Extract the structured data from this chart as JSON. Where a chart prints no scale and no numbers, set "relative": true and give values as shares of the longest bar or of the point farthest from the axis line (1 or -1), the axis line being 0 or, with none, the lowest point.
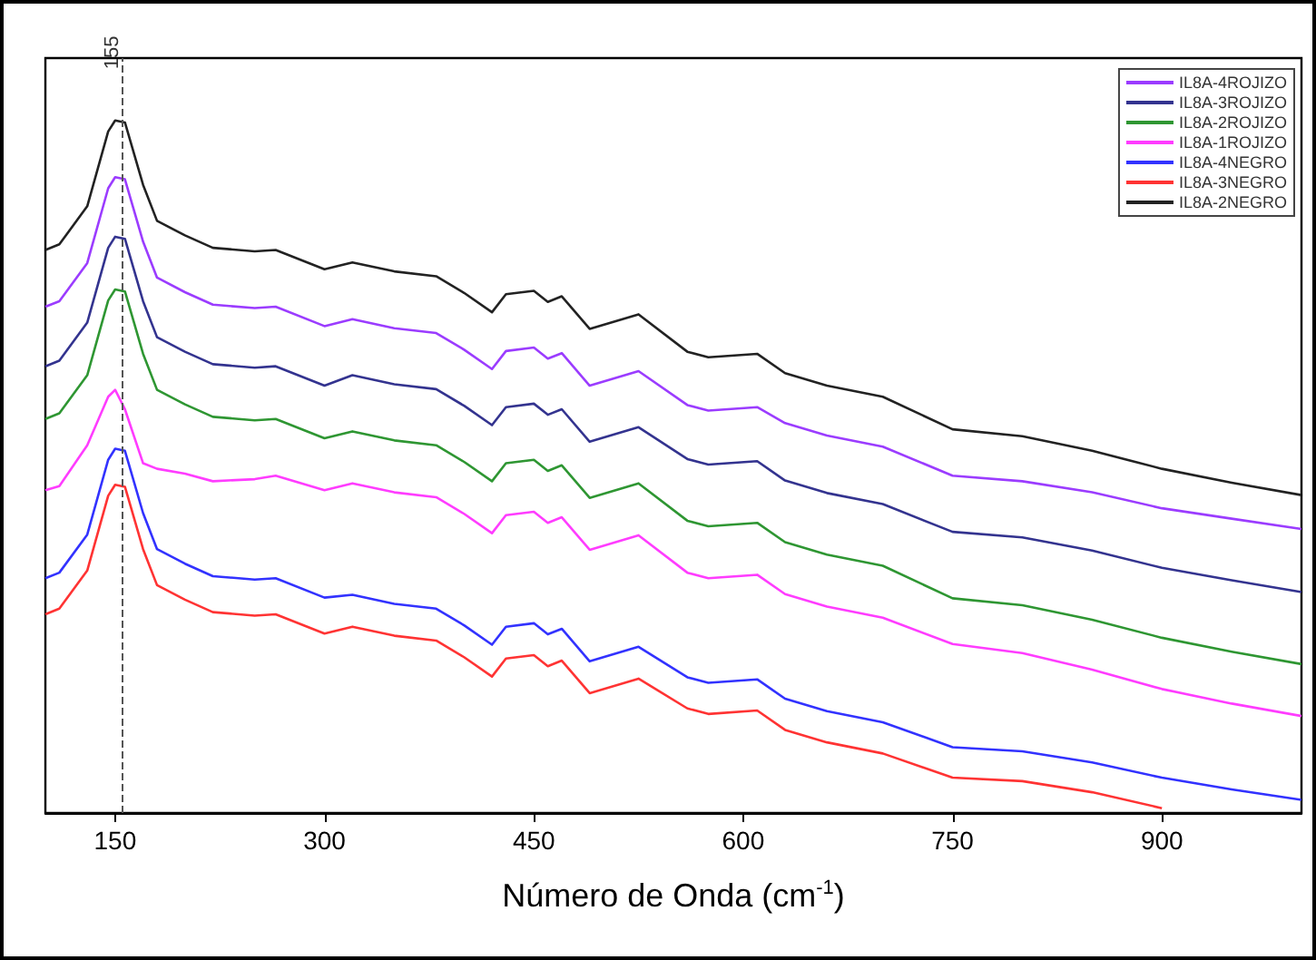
{
  "chart_data": {
    "type": "line",
    "relative": true,
    "xlabel": "Número de Onda (cm$^{-1}$)",
    "x": [
      100,
      110,
      130,
      145,
      150,
      157,
      170,
      180,
      200,
      220,
      250,
      265,
      300,
      320,
      350,
      380,
      400,
      420,
      430,
      450,
      460,
      470,
      490,
      525,
      560,
      575,
      610,
      630,
      660,
      700,
      750,
      800,
      850,
      900,
      950,
      1000
    ],
    "xlim": [
      100,
      1000
    ],
    "xticks": [
      150,
      300,
      450,
      600,
      750,
      900
    ],
    "series": [
      {
        "name": "IL8A-4ROJIZO",
        "color": "#9b3cff",
        "values": [
          0.731,
          0.739,
          0.794,
          0.902,
          0.918,
          0.915,
          0.825,
          0.773,
          0.752,
          0.734,
          0.729,
          0.731,
          0.703,
          0.713,
          0.7,
          0.693,
          0.669,
          0.641,
          0.667,
          0.672,
          0.656,
          0.664,
          0.617,
          0.638,
          0.589,
          0.581,
          0.586,
          0.563,
          0.545,
          0.529,
          0.487,
          0.479,
          0.463,
          0.44,
          0.425,
          0.41
        ]
      },
      {
        "name": "IL8A-3ROJIZO",
        "color": "#33338f",
        "values": [
          0.645,
          0.653,
          0.708,
          0.816,
          0.832,
          0.829,
          0.739,
          0.687,
          0.666,
          0.648,
          0.643,
          0.645,
          0.617,
          0.632,
          0.619,
          0.612,
          0.588,
          0.56,
          0.586,
          0.591,
          0.575,
          0.583,
          0.536,
          0.557,
          0.511,
          0.503,
          0.508,
          0.48,
          0.462,
          0.446,
          0.406,
          0.398,
          0.379,
          0.354,
          0.336,
          0.319
        ]
      },
      {
        "name": "IL8A-2ROJIZO",
        "color": "#2e9632",
        "values": [
          0.569,
          0.577,
          0.632,
          0.74,
          0.756,
          0.753,
          0.663,
          0.611,
          0.59,
          0.572,
          0.567,
          0.569,
          0.541,
          0.551,
          0.538,
          0.531,
          0.507,
          0.479,
          0.505,
          0.51,
          0.494,
          0.502,
          0.455,
          0.476,
          0.422,
          0.414,
          0.419,
          0.391,
          0.373,
          0.357,
          0.31,
          0.3,
          0.279,
          0.253,
          0.233,
          0.215
        ]
      },
      {
        "name": "IL8A-1ROJIZO",
        "color": "#ff3cff",
        "values": [
          0.466,
          0.472,
          0.531,
          0.601,
          0.611,
          0.583,
          0.505,
          0.497,
          0.49,
          0.479,
          0.482,
          0.487,
          0.466,
          0.476,
          0.463,
          0.456,
          0.432,
          0.404,
          0.43,
          0.435,
          0.419,
          0.427,
          0.38,
          0.401,
          0.347,
          0.339,
          0.344,
          0.316,
          0.298,
          0.282,
          0.244,
          0.231,
          0.207,
          0.179,
          0.158,
          0.14
        ]
      },
      {
        "name": "IL8A-4NEGRO",
        "color": "#3232ff",
        "values": [
          0.339,
          0.347,
          0.402,
          0.51,
          0.526,
          0.523,
          0.433,
          0.381,
          0.36,
          0.342,
          0.337,
          0.339,
          0.311,
          0.315,
          0.302,
          0.295,
          0.271,
          0.243,
          0.269,
          0.274,
          0.258,
          0.266,
          0.219,
          0.24,
          0.196,
          0.188,
          0.193,
          0.165,
          0.147,
          0.131,
          0.095,
          0.089,
          0.073,
          0.051,
          0.034,
          0.019
        ]
      },
      {
        "name": "IL8A-3NEGRO",
        "color": "#ff3333",
        "values": [
          0.287,
          0.295,
          0.35,
          0.458,
          0.474,
          0.471,
          0.381,
          0.329,
          0.308,
          0.29,
          0.285,
          0.287,
          0.259,
          0.269,
          0.256,
          0.249,
          0.225,
          0.197,
          0.223,
          0.228,
          0.212,
          0.22,
          0.173,
          0.194,
          0.151,
          0.143,
          0.148,
          0.12,
          0.102,
          0.086,
          0.051,
          0.046,
          0.03,
          0.007,
          null,
          null
        ]
      },
      {
        "name": "IL8A-2NEGRO",
        "color": "#222222",
        "values": [
          0.813,
          0.821,
          0.876,
          0.984,
          1.0,
          0.997,
          0.907,
          0.855,
          0.834,
          0.816,
          0.811,
          0.813,
          0.785,
          0.795,
          0.782,
          0.775,
          0.751,
          0.723,
          0.749,
          0.754,
          0.738,
          0.746,
          0.699,
          0.72,
          0.666,
          0.658,
          0.663,
          0.635,
          0.617,
          0.601,
          0.554,
          0.544,
          0.523,
          0.497,
          0.477,
          0.459
        ]
      }
    ],
    "ref_lines": [
      {
        "axis": "x",
        "value": 155,
        "label": "155",
        "color": "#555555",
        "line_style": "dashed"
      }
    ],
    "legend": "top right",
    "grid": false,
    "marker": "none",
    "line_style": "solid"
  }
}
